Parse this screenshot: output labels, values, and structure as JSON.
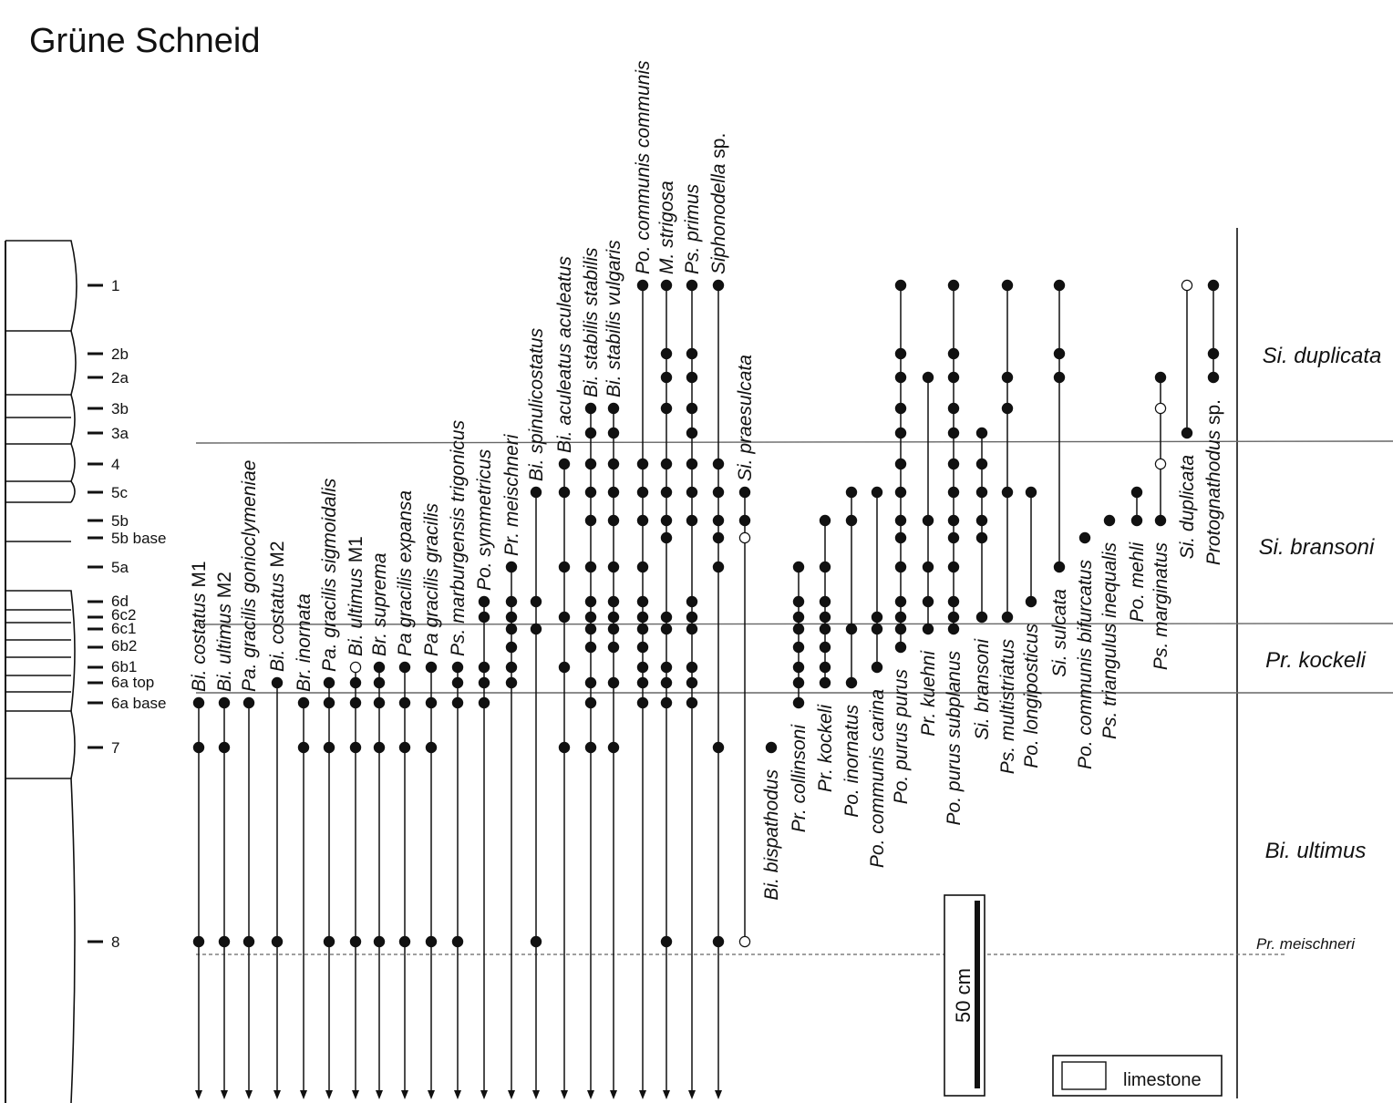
{
  "title": "Grüne Schneid",
  "levels": [
    "1",
    "2b",
    "2a",
    "3b",
    "3a",
    "4",
    "5c",
    "5b",
    "5b base",
    "5a",
    "6d",
    "6c2",
    "6c1",
    "6b2",
    "6b1",
    "6a top",
    "6a base",
    "7",
    "8"
  ],
  "zones": [
    {
      "name": "Si. duplicata",
      "italic": true
    },
    {
      "name": "Si. bransoni",
      "italic": true
    },
    {
      "name": "Pr. kockeli",
      "italic": true
    },
    {
      "name": "Bi. ultimus",
      "italic": true
    },
    {
      "name": "Pr. meischneri",
      "italic": true
    }
  ],
  "scale_bar": "50 cm",
  "legend": {
    "label": "limestone"
  },
  "taxa": [
    {
      "label": "Bi. costatus M1",
      "gen": "Bi.",
      "sp": "costatus",
      "suf": " M1",
      "samples": [
        "8",
        "7",
        "6a base"
      ],
      "open": [],
      "arrow": true
    },
    {
      "label": "Bi. ultimus M2",
      "gen": "Bi.",
      "sp": "ultimus",
      "suf": " M2",
      "samples": [
        "8",
        "7",
        "6a base"
      ],
      "open": [],
      "arrow": true
    },
    {
      "label": "Pa. gracilis gonioclymeniae",
      "gen": "Pa.",
      "sp": "gracilis gonioclymeniae",
      "suf": "",
      "samples": [
        "8",
        "6a base"
      ],
      "open": [],
      "arrow": true
    },
    {
      "label": "Bi. costatus M2",
      "gen": "Bi.",
      "sp": "costatus",
      "suf": " M2",
      "samples": [
        "8",
        "6a top"
      ],
      "open": [],
      "arrow": true
    },
    {
      "label": "Br. inornata",
      "gen": "Br.",
      "sp": "inornata",
      "suf": "",
      "samples": [
        "7",
        "6a base"
      ],
      "open": [],
      "arrow": true
    },
    {
      "label": "Pa. gracilis sigmoidalis",
      "gen": "Pa.",
      "sp": "gracilis sigmoidalis",
      "suf": "",
      "samples": [
        "8",
        "7",
        "6a base",
        "6a top"
      ],
      "open": [],
      "arrow": true
    },
    {
      "label": "Bi. ultimus M1",
      "gen": "Bi.",
      "sp": "ultimus",
      "suf": " M1",
      "samples": [
        "8",
        "7",
        "6a base",
        "6a top",
        "6b1"
      ],
      "open": [
        "6b1"
      ],
      "arrow": true
    },
    {
      "label": "Br. suprema",
      "gen": "Br.",
      "sp": "suprema",
      "suf": "",
      "samples": [
        "8",
        "7",
        "6a base",
        "6a top",
        "6b1"
      ],
      "open": [],
      "arrow": true
    },
    {
      "label": "Pa gracilis expansa",
      "gen": "Pa",
      "sp": "gracilis expansa",
      "suf": "",
      "samples": [
        "8",
        "7",
        "6a base",
        "6b1"
      ],
      "open": [],
      "arrow": true
    },
    {
      "label": "Pa gracilis gracilis",
      "gen": "Pa",
      "sp": "gracilis gracilis",
      "suf": "",
      "samples": [
        "8",
        "7",
        "6a base",
        "6b1"
      ],
      "open": [],
      "arrow": true
    },
    {
      "label": "Ps. marburgensis trigonicus",
      "gen": "Ps.",
      "sp": "marburgensis trigonicus",
      "suf": "",
      "samples": [
        "8",
        "6a base",
        "6a top",
        "6b1"
      ],
      "open": [],
      "arrow": true
    },
    {
      "label": "Po. symmetricus",
      "gen": "Po.",
      "sp": "symmetricus",
      "suf": "",
      "samples": [
        "6a base",
        "6a top",
        "6b1",
        "6c2",
        "6d"
      ],
      "open": [],
      "arrow": true
    },
    {
      "label": "Pr. meischneri",
      "gen": "Pr.",
      "sp": "meischneri",
      "suf": "",
      "samples": [
        "6a top",
        "6b1",
        "6b2",
        "6c1",
        "6c2",
        "6d",
        "5a"
      ],
      "open": [],
      "arrow": true
    },
    {
      "label": "Bi. spinulicostatus",
      "gen": "Bi.",
      "sp": "spinulicostatus",
      "suf": "",
      "samples": [
        "8",
        "6c1",
        "6d",
        "5c"
      ],
      "open": [],
      "arrow": true
    },
    {
      "label": "Bi. aculeatus aculeatus",
      "gen": "Bi.",
      "sp": "aculeatus aculeatus",
      "suf": "",
      "samples": [
        "7",
        "6b1",
        "6c2",
        "5a",
        "5c",
        "4"
      ],
      "open": [],
      "arrow": true
    },
    {
      "label": "Bi. stabilis stabilis",
      "gen": "Bi.",
      "sp": "stabilis stabilis",
      "suf": "",
      "samples": [
        "7",
        "6a base",
        "6a top",
        "6b2",
        "6c1",
        "6c2",
        "6d",
        "5a",
        "5b",
        "5c",
        "4",
        "3a",
        "3b"
      ],
      "open": [],
      "arrow": true
    },
    {
      "label": "Bi. stabilis vulgaris",
      "gen": "Bi.",
      "sp": "stabilis vulgaris",
      "suf": "",
      "samples": [
        "7",
        "6a top",
        "6b2",
        "6c1",
        "6c2",
        "6d",
        "5a",
        "5b",
        "5c",
        "4",
        "3a",
        "3b"
      ],
      "open": [],
      "arrow": true
    },
    {
      "label": "Po. communis communis",
      "gen": "Po.",
      "sp": "communis communis",
      "suf": "",
      "samples": [
        "6a base",
        "6a top",
        "6b1",
        "6b2",
        "6c1",
        "6c2",
        "6d",
        "5a",
        "5b",
        "5c",
        "4",
        "1"
      ],
      "open": [],
      "arrow": true
    },
    {
      "label": "M. strigosa",
      "gen": "M.",
      "sp": "strigosa",
      "suf": "",
      "samples": [
        "8",
        "6a base",
        "6a top",
        "6b1",
        "6c1",
        "6c2",
        "5b base",
        "5b",
        "5c",
        "4",
        "3b",
        "2a",
        "2b",
        "1"
      ],
      "open": [],
      "arrow": true
    },
    {
      "label": "Ps. primus",
      "gen": "Ps.",
      "sp": "primus",
      "suf": "",
      "samples": [
        "6a base",
        "6a top",
        "6b1",
        "6c1",
        "6c2",
        "6d",
        "5b",
        "5c",
        "4",
        "3a",
        "3b",
        "2a",
        "2b",
        "1"
      ],
      "open": [],
      "arrow": true
    },
    {
      "label": "Siphonodella sp.",
      "gen": "",
      "sp": "Siphonodella",
      "suf": " sp.",
      "samples": [
        "8",
        "7",
        "5a",
        "5b base",
        "5b",
        "5c",
        "4",
        "1"
      ],
      "open": [],
      "arrow": true
    },
    {
      "label": "Si. praesulcata",
      "gen": "Si.",
      "sp": "praesulcata",
      "suf": "",
      "samples": [
        "8",
        "5b base",
        "5b",
        "5c"
      ],
      "open": [
        "8",
        "5b base"
      ],
      "arrow": false
    },
    {
      "label": "Bi. bispathodus",
      "gen": "Bi.",
      "sp": "bispathodus",
      "suf": "",
      "samples": [
        "7"
      ],
      "open": [],
      "arrow": false,
      "lpos": "below"
    },
    {
      "label": "Pr. collinsoni",
      "gen": "Pr.",
      "sp": "collinsoni",
      "suf": "",
      "samples": [
        "6a base",
        "6a top",
        "6b1",
        "6b2",
        "6c1",
        "6c2",
        "6d",
        "5a"
      ],
      "open": [],
      "arrow": false,
      "lpos": "below"
    },
    {
      "label": "Pr. kockeli",
      "gen": "Pr.",
      "sp": "kockeli",
      "suf": "",
      "samples": [
        "6a top",
        "6b1",
        "6b2",
        "6c1",
        "6c2",
        "6d",
        "5a",
        "5b"
      ],
      "open": [],
      "arrow": false,
      "lpos": "below"
    },
    {
      "label": "Po. inornatus",
      "gen": "Po.",
      "sp": "inornatus",
      "suf": "",
      "samples": [
        "6a top",
        "6c1",
        "5b",
        "5c"
      ],
      "open": [],
      "arrow": false,
      "lpos": "below"
    },
    {
      "label": "Po. communis carina",
      "gen": "Po.",
      "sp": "communis carina",
      "suf": "",
      "samples": [
        "6b1",
        "6c1",
        "6c2",
        "5c"
      ],
      "open": [],
      "arrow": false,
      "lpos": "below"
    },
    {
      "label": "Po. purus purus",
      "gen": "Po.",
      "sp": "purus purus",
      "suf": "",
      "samples": [
        "6b2",
        "6c1",
        "6c2",
        "6d",
        "5a",
        "5b base",
        "5b",
        "5c",
        "4",
        "3a",
        "3b",
        "2a",
        "2b",
        "1"
      ],
      "open": [],
      "arrow": false,
      "lpos": "below"
    },
    {
      "label": "Pr. kuehni",
      "gen": "Pr.",
      "sp": "kuehni",
      "suf": "",
      "samples": [
        "6c1",
        "6d",
        "5a",
        "5b",
        "2a"
      ],
      "open": [],
      "arrow": false,
      "lpos": "below"
    },
    {
      "label": "Po. purus subplanus",
      "gen": "Po.",
      "sp": "purus subplanus",
      "suf": "",
      "samples": [
        "6c1",
        "6c2",
        "6d",
        "5a",
        "5b base",
        "5b",
        "5c",
        "4",
        "3a",
        "3b",
        "2a",
        "2b",
        "1"
      ],
      "open": [],
      "arrow": false,
      "lpos": "below"
    },
    {
      "label": "Si. bransoni",
      "gen": "Si.",
      "sp": "bransoni",
      "suf": "",
      "samples": [
        "6c2",
        "5b base",
        "5b",
        "5c",
        "4",
        "3a"
      ],
      "open": [],
      "arrow": false,
      "lpos": "below"
    },
    {
      "label": "Ps. multistriatus",
      "gen": "Ps.",
      "sp": "multistriatus",
      "suf": "",
      "samples": [
        "6c2",
        "5c",
        "3b",
        "2a",
        "1"
      ],
      "open": [],
      "arrow": false,
      "lpos": "below"
    },
    {
      "label": "Po. longiposticus",
      "gen": "Po.",
      "sp": "longiposticus",
      "suf": "",
      "samples": [
        "6d",
        "5c"
      ],
      "open": [],
      "arrow": false,
      "lpos": "below"
    },
    {
      "label": "Si. sulcata",
      "gen": "Si.",
      "sp": "sulcata",
      "suf": "",
      "samples": [
        "5a",
        "2a",
        "2b",
        "1"
      ],
      "open": [],
      "arrow": false,
      "lpos": "below"
    },
    {
      "label": "Po. communis bifurcatus",
      "gen": "Po.",
      "sp": "communis bifurcatus",
      "suf": "",
      "samples": [
        "5b base"
      ],
      "open": [],
      "arrow": false,
      "lpos": "below"
    },
    {
      "label": "Ps. triangulus inequalis",
      "gen": "Ps.",
      "sp": "triangulus inequalis",
      "suf": "",
      "samples": [
        "5b"
      ],
      "open": [],
      "arrow": false,
      "lpos": "below"
    },
    {
      "label": "Po. mehli",
      "gen": "Po.",
      "sp": "mehli",
      "suf": "",
      "samples": [
        "5b",
        "5c"
      ],
      "open": [],
      "arrow": false,
      "lpos": "below"
    },
    {
      "label": "Ps. marginatus",
      "gen": "Ps.",
      "sp": "marginatus",
      "suf": "",
      "samples": [
        "5b",
        "4",
        "3b",
        "2a"
      ],
      "open": [
        "4",
        "3b"
      ],
      "arrow": false,
      "lpos": "below"
    },
    {
      "label": "Si. duplicata",
      "gen": "Si.",
      "sp": "duplicata",
      "suf": "",
      "samples": [
        "3a",
        "1"
      ],
      "open": [
        "1"
      ],
      "arrow": false,
      "lpos": "below"
    },
    {
      "label": "Protognathodus sp.",
      "gen": "",
      "sp": "Protognathodus",
      "suf": " sp.",
      "samples": [
        "2a",
        "2b",
        "1"
      ],
      "open": [],
      "arrow": false,
      "lpos": "below"
    }
  ]
}
